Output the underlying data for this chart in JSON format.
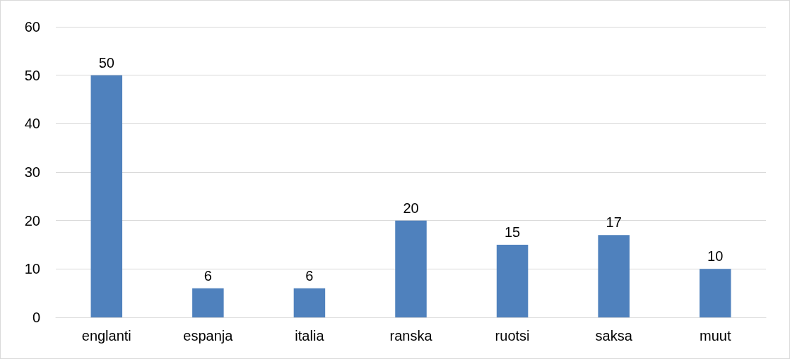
{
  "chart_data": {
    "type": "bar",
    "categories": [
      "englanti",
      "espanja",
      "italia",
      "ranska",
      "ruotsi",
      "saksa",
      "muut"
    ],
    "values": [
      50,
      6,
      6,
      20,
      15,
      17,
      10
    ],
    "color": "#4f81bd",
    "ylim": [
      0,
      60
    ],
    "yticks": [
      0,
      10,
      20,
      30,
      40,
      50,
      60
    ],
    "grid": "y",
    "data_labels": true
  }
}
